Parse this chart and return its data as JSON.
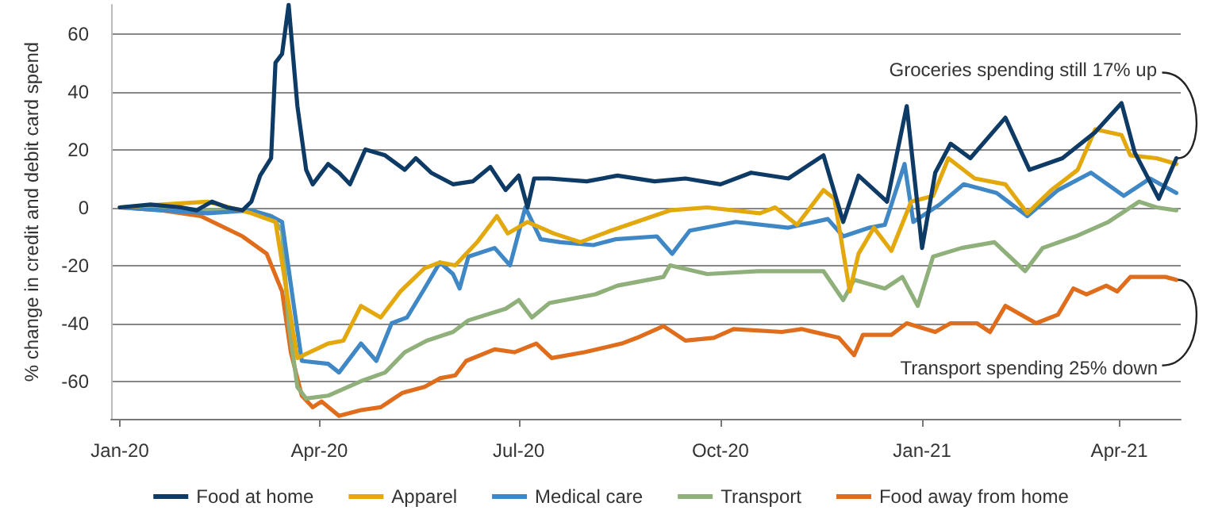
{
  "chart_data": {
    "type": "line",
    "ylabel": "% change in credit and debit card spend",
    "xlim": [
      "2019-12-28",
      "2021-04-29"
    ],
    "xticks": [
      {
        "value": "2020-01-01",
        "label": "Jan-20"
      },
      {
        "value": "2020-04-01",
        "label": "Apr-20"
      },
      {
        "value": "2020-07-01",
        "label": "Jul-20"
      },
      {
        "value": "2020-10-01",
        "label": "Oct-20"
      },
      {
        "value": "2021-01-01",
        "label": "Jan-21"
      },
      {
        "value": "2021-04-01",
        "label": "Apr-21"
      }
    ],
    "ylim": [
      -73,
      70
    ],
    "yticks": [
      -60,
      -40,
      -20,
      0,
      20,
      40,
      60
    ],
    "grid": "y",
    "legend": "bottom",
    "marker": "none",
    "line_style": "solid",
    "annotations": [
      {
        "text": "Groceries spending still 17% up",
        "x": "2021-04-27",
        "y": 17
      },
      {
        "text": "Transport spending 25% down",
        "x": "2021-04-27",
        "y": -25
      }
    ],
    "series": [
      {
        "name": "Food at home",
        "color": "#0e3a66",
        "x": [
          "2020-01-01",
          "2020-01-15",
          "2020-01-29",
          "2020-02-05",
          "2020-02-12",
          "2020-02-19",
          "2020-02-26",
          "2020-03-01",
          "2020-03-05",
          "2020-03-10",
          "2020-03-12",
          "2020-03-15",
          "2020-03-18",
          "2020-03-22",
          "2020-03-26",
          "2020-03-29",
          "2020-04-05",
          "2020-04-10",
          "2020-04-15",
          "2020-04-22",
          "2020-05-01",
          "2020-05-10",
          "2020-05-15",
          "2020-05-22",
          "2020-06-01",
          "2020-06-10",
          "2020-06-18",
          "2020-06-25",
          "2020-07-01",
          "2020-07-05",
          "2020-07-08",
          "2020-07-15",
          "2020-08-01",
          "2020-08-15",
          "2020-09-01",
          "2020-09-15",
          "2020-10-01",
          "2020-10-15",
          "2020-11-01",
          "2020-11-17",
          "2020-11-26",
          "2020-12-03",
          "2020-12-16",
          "2020-12-25",
          "2021-01-01",
          "2021-01-07",
          "2021-01-14",
          "2021-01-23",
          "2021-02-08",
          "2021-02-19",
          "2021-03-06",
          "2021-03-21",
          "2021-04-02",
          "2021-04-08",
          "2021-04-19",
          "2021-04-27"
        ],
        "values": [
          0,
          1,
          0,
          -1,
          2,
          0,
          -1,
          2,
          11,
          17,
          50,
          53,
          70,
          35,
          13,
          8,
          15,
          12,
          8,
          20,
          18,
          13,
          17,
          12,
          8,
          9,
          14,
          6,
          11,
          0,
          10,
          10,
          9,
          11,
          9,
          10,
          8,
          12,
          10,
          18,
          -5,
          11,
          2,
          35,
          -14,
          12,
          22,
          17,
          31,
          13,
          17,
          26,
          36,
          19,
          3,
          17
        ]
      },
      {
        "name": "Apparel",
        "color": "#e2a80c",
        "x": [
          "2020-01-01",
          "2020-01-20",
          "2020-02-10",
          "2020-03-01",
          "2020-03-12",
          "2020-03-22",
          "2020-04-05",
          "2020-04-12",
          "2020-04-20",
          "2020-04-29",
          "2020-05-08",
          "2020-05-19",
          "2020-05-26",
          "2020-06-02",
          "2020-06-12",
          "2020-06-21",
          "2020-06-26",
          "2020-07-05",
          "2020-07-17",
          "2020-07-29",
          "2020-08-12",
          "2020-09-08",
          "2020-09-25",
          "2020-10-19",
          "2020-10-26",
          "2020-11-05",
          "2020-11-17",
          "2020-11-22",
          "2020-11-29",
          "2020-12-03",
          "2020-12-10",
          "2020-12-18",
          "2020-12-27",
          "2021-01-06",
          "2021-01-13",
          "2021-01-25",
          "2021-02-08",
          "2021-02-18",
          "2021-03-01",
          "2021-03-13",
          "2021-03-21",
          "2021-04-02",
          "2021-04-06",
          "2021-04-18",
          "2021-04-27"
        ],
        "values": [
          0,
          1,
          2,
          -2,
          -5,
          -52,
          -47,
          -46,
          -34,
          -38,
          -29,
          -21,
          -19,
          -20,
          -12,
          -3,
          -9,
          -5,
          -9,
          -12,
          -8,
          -1,
          0,
          -2,
          0,
          -6,
          6,
          3,
          -29,
          -16,
          -7,
          -15,
          2,
          4,
          17,
          10,
          8,
          -2,
          6,
          13,
          27,
          25,
          18,
          17,
          15
        ]
      },
      {
        "name": "Medical care",
        "color": "#3f88c5",
        "x": [
          "2020-01-01",
          "2020-01-20",
          "2020-02-10",
          "2020-03-01",
          "2020-03-10",
          "2020-03-15",
          "2020-03-20",
          "2020-03-24",
          "2020-04-05",
          "2020-04-10",
          "2020-04-20",
          "2020-04-27",
          "2020-05-04",
          "2020-05-11",
          "2020-05-19",
          "2020-05-26",
          "2020-06-01",
          "2020-06-04",
          "2020-06-08",
          "2020-06-20",
          "2020-06-27",
          "2020-07-04",
          "2020-07-11",
          "2020-07-20",
          "2020-08-04",
          "2020-08-14",
          "2020-09-02",
          "2020-09-09",
          "2020-09-17",
          "2020-10-08",
          "2020-11-01",
          "2020-11-19",
          "2020-11-26",
          "2020-12-08",
          "2020-12-15",
          "2020-12-24",
          "2020-12-28",
          "2021-01-09",
          "2021-01-20",
          "2021-02-04",
          "2021-02-18",
          "2021-03-04",
          "2021-03-19",
          "2021-04-03",
          "2021-04-15",
          "2021-04-27"
        ],
        "values": [
          0,
          -1,
          -2,
          -1,
          -3,
          -5,
          -32,
          -53,
          -54,
          -57,
          -47,
          -53,
          -40,
          -38,
          -28,
          -19,
          -23,
          -28,
          -17,
          -14,
          -20,
          0,
          -11,
          -12,
          -13,
          -11,
          -10,
          -16,
          -8,
          -5,
          -7,
          -4,
          -10,
          -7,
          -6,
          15,
          -5,
          1,
          8,
          5,
          -3,
          6,
          12,
          4,
          10,
          5
        ]
      },
      {
        "name": "Transport",
        "color": "#8fb07a",
        "x": [
          "2020-01-01",
          "2020-01-20",
          "2020-02-10",
          "2020-03-01",
          "2020-03-10",
          "2020-03-15",
          "2020-03-18",
          "2020-03-22",
          "2020-03-26",
          "2020-04-05",
          "2020-04-20",
          "2020-05-01",
          "2020-05-10",
          "2020-05-20",
          "2020-06-01",
          "2020-06-08",
          "2020-06-25",
          "2020-07-01",
          "2020-07-07",
          "2020-07-15",
          "2020-08-05",
          "2020-08-15",
          "2020-09-05",
          "2020-09-08",
          "2020-09-25",
          "2020-10-18",
          "2020-11-17",
          "2020-11-26",
          "2020-12-01",
          "2020-12-15",
          "2020-12-23",
          "2020-12-30",
          "2021-01-06",
          "2021-01-19",
          "2021-02-03",
          "2021-02-17",
          "2021-02-25",
          "2021-03-12",
          "2021-03-27",
          "2021-04-10",
          "2021-04-18",
          "2021-04-27"
        ],
        "values": [
          0,
          0,
          -1,
          -1,
          -3,
          -8,
          -40,
          -62,
          -66,
          -65,
          -60,
          -57,
          -50,
          -46,
          -43,
          -39,
          -35,
          -32,
          -38,
          -33,
          -30,
          -27,
          -24,
          -20,
          -23,
          -22,
          -22,
          -32,
          -25,
          -28,
          -24,
          -34,
          -17,
          -14,
          -12,
          -22,
          -14,
          -10,
          -5,
          2,
          0,
          -1
        ]
      },
      {
        "name": "Food away from home",
        "color": "#e06d1c",
        "x": [
          "2020-01-01",
          "2020-01-20",
          "2020-02-07",
          "2020-02-26",
          "2020-03-08",
          "2020-03-15",
          "2020-03-19",
          "2020-03-24",
          "2020-03-29",
          "2020-04-02",
          "2020-04-10",
          "2020-04-20",
          "2020-04-29",
          "2020-05-09",
          "2020-05-19",
          "2020-05-26",
          "2020-06-02",
          "2020-06-07",
          "2020-06-20",
          "2020-06-29",
          "2020-07-09",
          "2020-07-16",
          "2020-07-31",
          "2020-08-17",
          "2020-08-24",
          "2020-09-05",
          "2020-09-15",
          "2020-09-28",
          "2020-10-07",
          "2020-10-29",
          "2020-11-07",
          "2020-11-24",
          "2020-12-01",
          "2020-12-05",
          "2020-12-18",
          "2020-12-25",
          "2021-01-07",
          "2021-01-14",
          "2021-01-26",
          "2021-02-01",
          "2021-02-08",
          "2021-02-22",
          "2021-03-04",
          "2021-03-11",
          "2021-03-17",
          "2021-03-26",
          "2021-03-31",
          "2021-04-06",
          "2021-04-22",
          "2021-04-27"
        ],
        "values": [
          0,
          -1,
          -3,
          -10,
          -16,
          -29,
          -50,
          -65,
          -69,
          -67,
          -72,
          -70,
          -69,
          -64,
          -62,
          -59,
          -58,
          -53,
          -49,
          -50,
          -47,
          -52,
          -50,
          -47,
          -45,
          -41,
          -46,
          -45,
          -42,
          -43,
          -42,
          -45,
          -51,
          -44,
          -44,
          -40,
          -43,
          -40,
          -40,
          -43,
          -34,
          -40,
          -37,
          -28,
          -30,
          -27,
          -29,
          -24,
          -24,
          -25
        ]
      }
    ]
  }
}
